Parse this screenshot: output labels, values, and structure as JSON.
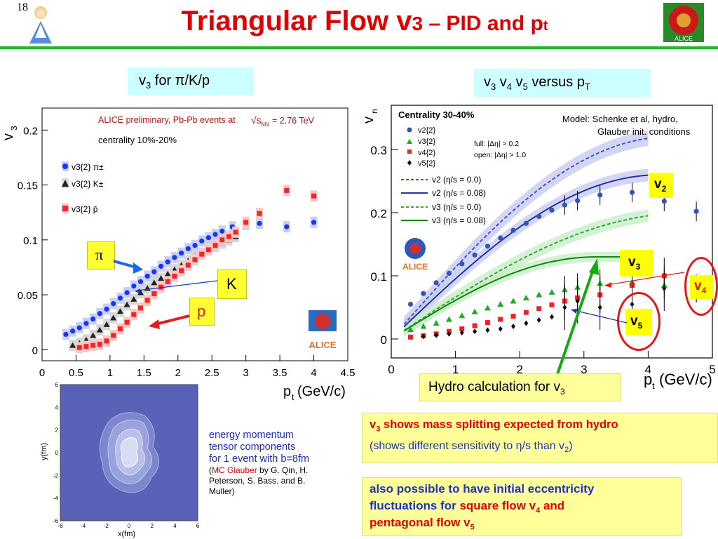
{
  "slide_number": "18",
  "title": {
    "main": "Triangular Flow v",
    "main_sub": "3",
    "dash": " – PID and p",
    "dash_sub": "t"
  },
  "left_box": {
    "pre": "v",
    "sub": "3",
    "post": " for π/K/p"
  },
  "right_box": {
    "p1": "v",
    "s1": "3",
    "p2": " v",
    "s2": "4",
    "p3": " v",
    "s3": "5",
    "p4": " versus p",
    "s4": "T"
  },
  "left_chart": {
    "header": "ALICE preliminary, Pb-Pb events at",
    "energy": "√s",
    "energy_sub": "NN",
    "energy_val": " = 2.76 TeV",
    "centrality": "centrality 10%-20%",
    "ylabel": "v",
    "ylabel_sub": "3",
    "yticks": [
      "0.2",
      "0.15",
      "0.1",
      "0.05",
      "0"
    ],
    "xticks": [
      "0",
      "0.5",
      "1",
      "1.5",
      "2",
      "2.5",
      "3",
      "3.5",
      "4",
      "4.5"
    ],
    "xlabel": "p",
    "xlabel_sub": "t",
    "xlabel_unit": " (GeV/c)",
    "legend": [
      "v3{2} π±",
      "v3{2} K±",
      "v3{2} p̄"
    ],
    "series_colors": {
      "pion": "#1a33ff",
      "kaon": "#222222",
      "proton": "#ff2222"
    },
    "callouts": {
      "pi": "π",
      "k": "K",
      "p": "p"
    },
    "alice": "ALICE"
  },
  "left_chart_data": {
    "type": "scatter",
    "xlabel": "pt (GeV/c)",
    "ylabel": "v3",
    "xlim": [
      0,
      4.5
    ],
    "ylim": [
      -0.01,
      0.22
    ],
    "series": [
      {
        "name": "v3{2} π±",
        "x": [
          0.35,
          0.45,
          0.55,
          0.65,
          0.75,
          0.85,
          0.95,
          1.05,
          1.15,
          1.25,
          1.35,
          1.45,
          1.55,
          1.65,
          1.75,
          1.85,
          1.95,
          2.05,
          2.15,
          2.25,
          2.35,
          2.45,
          2.55,
          2.65,
          2.8,
          3.0,
          3.2,
          3.6,
          4.0
        ],
        "y": [
          0.014,
          0.017,
          0.02,
          0.024,
          0.028,
          0.033,
          0.037,
          0.042,
          0.047,
          0.052,
          0.058,
          0.062,
          0.067,
          0.071,
          0.076,
          0.08,
          0.084,
          0.088,
          0.092,
          0.095,
          0.099,
          0.102,
          0.105,
          0.108,
          0.112,
          0.114,
          0.115,
          0.112,
          0.116
        ]
      },
      {
        "name": "v3{2} K±",
        "x": [
          0.45,
          0.55,
          0.65,
          0.75,
          0.85,
          0.95,
          1.05,
          1.15,
          1.25,
          1.35,
          1.45,
          1.55,
          1.65,
          1.75,
          1.85,
          1.95,
          2.05,
          2.15,
          2.25,
          2.35,
          2.45,
          2.55,
          2.65,
          2.75,
          2.85
        ],
        "y": [
          0.004,
          0.006,
          0.009,
          0.013,
          0.018,
          0.023,
          0.029,
          0.035,
          0.041,
          0.046,
          0.052,
          0.056,
          0.061,
          0.065,
          0.069,
          0.073,
          0.077,
          0.081,
          0.085,
          0.088,
          0.092,
          0.094,
          0.097,
          0.1,
          0.103
        ]
      },
      {
        "name": "v3{2} p̄",
        "x": [
          0.55,
          0.65,
          0.75,
          0.85,
          0.95,
          1.05,
          1.15,
          1.25,
          1.35,
          1.45,
          1.55,
          1.65,
          1.75,
          1.85,
          1.95,
          2.05,
          2.15,
          2.25,
          2.35,
          2.45,
          2.55,
          2.65,
          2.75,
          2.85,
          3.0,
          3.2,
          3.6,
          4.0
        ],
        "y": [
          0.002,
          0.003,
          0.004,
          0.005,
          0.008,
          0.013,
          0.019,
          0.025,
          0.032,
          0.038,
          0.045,
          0.051,
          0.057,
          0.062,
          0.067,
          0.072,
          0.077,
          0.082,
          0.087,
          0.091,
          0.095,
          0.1,
          0.103,
          0.107,
          0.116,
          0.124,
          0.145,
          0.14
        ]
      }
    ]
  },
  "right_chart": {
    "ylabel": "v",
    "ylabel_sub": "n",
    "centrality": "Centrality 30-40%",
    "model_line1": "Model: Schenke et al, hydro,",
    "model_line2": "Glauber init. conditions",
    "cuts_full": "full: |Δη| > 0.2",
    "cuts_open": "open: |Δη| > 1.0",
    "legend_markers": [
      "v2{2}",
      "v3{2}",
      "v4{2}",
      "v5{2}"
    ],
    "legend_lines": [
      "v2 (η/s = 0.0)",
      "v2 (η/s = 0.08)",
      "v3 (η/s = 0.0)",
      "v3 (η/s = 0.08)"
    ],
    "yticks": [
      "0.3",
      "0.2",
      "0.1",
      "0"
    ],
    "xticks": [
      "0",
      "1",
      "2",
      "3",
      "4",
      "5"
    ],
    "xlabel": "p",
    "xlabel_sub": "t",
    "xlabel_unit": " (GeV/c)",
    "alice": "ALICE",
    "tags": {
      "v2": "v",
      "v3": "v",
      "v4": "v",
      "v5": "v"
    },
    "hydro_pre": "Hydro calculation for v",
    "hydro_sub": "3"
  },
  "right_chart_data": {
    "type": "scatter",
    "xlabel": "pt (GeV/c)",
    "ylabel": "vn",
    "xlim": [
      0,
      5
    ],
    "ylim": [
      -0.03,
      0.37
    ],
    "series": [
      {
        "name": "v2{2}",
        "x": [
          0.3,
          0.5,
          0.7,
          0.9,
          1.1,
          1.3,
          1.5,
          1.7,
          1.9,
          2.1,
          2.3,
          2.5,
          2.7,
          2.9,
          3.25,
          3.75,
          4.25,
          4.75
        ],
        "y": [
          0.055,
          0.072,
          0.089,
          0.104,
          0.119,
          0.133,
          0.147,
          0.16,
          0.172,
          0.183,
          0.194,
          0.204,
          0.212,
          0.219,
          0.228,
          0.232,
          0.218,
          0.202
        ]
      },
      {
        "name": "v3{2}",
        "x": [
          0.3,
          0.5,
          0.7,
          0.9,
          1.1,
          1.3,
          1.5,
          1.7,
          1.9,
          2.1,
          2.3,
          2.5,
          2.7,
          2.9,
          3.25,
          3.75,
          4.25,
          4.75
        ],
        "y": [
          0.015,
          0.02,
          0.025,
          0.031,
          0.037,
          0.043,
          0.049,
          0.055,
          0.06,
          0.065,
          0.07,
          0.074,
          0.078,
          0.082,
          0.088,
          0.09,
          0.085,
          0.08
        ]
      },
      {
        "name": "v4{2}",
        "x": [
          0.3,
          0.5,
          0.7,
          0.9,
          1.1,
          1.3,
          1.5,
          1.7,
          1.9,
          2.1,
          2.3,
          2.5,
          2.7,
          2.9,
          3.25,
          3.75,
          4.25
        ],
        "y": [
          0.003,
          0.005,
          0.008,
          0.012,
          0.016,
          0.021,
          0.026,
          0.031,
          0.036,
          0.042,
          0.048,
          0.054,
          0.06,
          0.065,
          0.07,
          0.085,
          0.1
        ]
      },
      {
        "name": "v5{2}",
        "x": [
          0.5,
          0.7,
          0.9,
          1.1,
          1.3,
          1.5,
          1.7,
          1.9,
          2.1,
          2.3,
          2.5,
          2.7,
          2.9,
          3.25,
          3.75,
          4.25
        ],
        "y": [
          0.004,
          0.006,
          0.008,
          0.01,
          0.012,
          0.014,
          0.016,
          0.02,
          0.025,
          0.03,
          0.035,
          0.05,
          0.06,
          0.05,
          0.055,
          0.08
        ]
      }
    ]
  },
  "contour": {
    "ylabel": "y(fm)",
    "xlabel": "x(fm)",
    "yticks": [
      "6",
      "4",
      "2",
      "0",
      "-2",
      "-4",
      "-6"
    ],
    "xticks": [
      "-6",
      "-4",
      "-2",
      "0",
      "2",
      "4",
      "6"
    ]
  },
  "notes": {
    "line1": "energy momentum",
    "line2": "tensor components",
    "line3": "for 1 event with b=8fm",
    "paren_open": "(",
    "mc": "MC Glauber",
    "line4": " by G. Qin, H.",
    "line5": "Peterson, S. Bass. and B.",
    "line6": "Muller)"
  },
  "box1": {
    "a": "v",
    "a_sub": "3",
    "b": " shows mass splitting expected from hydro",
    "c": "(shows different sensitivity to η/s than v",
    "c_sub": "2",
    "c_end": ")"
  },
  "box2": {
    "l1": "also possible to have initial eccentricity",
    "l2a": "fluctuations for ",
    "l2b": "square flow v",
    "l2b_sub": "4",
    "l2c": " and",
    "l3": "pentagonal flow v",
    "l3_sub": "5"
  }
}
